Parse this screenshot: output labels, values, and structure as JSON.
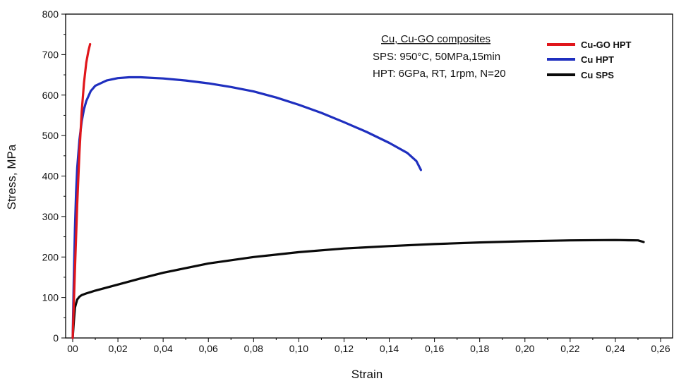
{
  "chart_data": {
    "type": "line",
    "xlabel": "Strain",
    "ylabel": "Stress, MPa",
    "xlim": [
      0,
      0.265
    ],
    "ylim": [
      0,
      800
    ],
    "x_ticks": [
      {
        "value": 0.0,
        "label": "00"
      },
      {
        "value": 0.02,
        "label": "0,02"
      },
      {
        "value": 0.04,
        "label": "0,04"
      },
      {
        "value": 0.06,
        "label": "0,06"
      },
      {
        "value": 0.08,
        "label": "0,08"
      },
      {
        "value": 0.1,
        "label": "0,10"
      },
      {
        "value": 0.12,
        "label": "0,12"
      },
      {
        "value": 0.14,
        "label": "0,14"
      },
      {
        "value": 0.16,
        "label": "0,16"
      },
      {
        "value": 0.18,
        "label": "0,18"
      },
      {
        "value": 0.2,
        "label": "0,20"
      },
      {
        "value": 0.22,
        "label": "0,22"
      },
      {
        "value": 0.24,
        "label": "0,24"
      },
      {
        "value": 0.26,
        "label": "0,26"
      }
    ],
    "y_ticks": [
      {
        "value": 0,
        "label": "0"
      },
      {
        "value": 100,
        "label": "100"
      },
      {
        "value": 200,
        "label": "200"
      },
      {
        "value": 300,
        "label": "300"
      },
      {
        "value": 400,
        "label": "400"
      },
      {
        "value": 500,
        "label": "500"
      },
      {
        "value": 600,
        "label": "600"
      },
      {
        "value": 700,
        "label": "700"
      },
      {
        "value": 800,
        "label": "800"
      }
    ],
    "grid": false,
    "annotation": {
      "title": "Cu, Cu-GO composites",
      "lines": [
        "SPS: 950°C, 50MPa,15min",
        "HPT: 6GPa, RT, 1rpm, N=20"
      ]
    },
    "legend_position": "top-right",
    "series": [
      {
        "name": "Cu-GO HPT",
        "color": "#e0161b",
        "x": [
          0.0,
          0.001,
          0.002,
          0.003,
          0.004,
          0.005,
          0.006,
          0.007,
          0.0077
        ],
        "y": [
          0,
          170,
          330,
          460,
          560,
          630,
          680,
          710,
          726
        ]
      },
      {
        "name": "Cu HPT",
        "color": "#1f2fbf",
        "x": [
          0.0,
          0.0005,
          0.001,
          0.0015,
          0.002,
          0.003,
          0.004,
          0.005,
          0.006,
          0.008,
          0.01,
          0.015,
          0.02,
          0.025,
          0.03,
          0.04,
          0.05,
          0.06,
          0.07,
          0.08,
          0.09,
          0.1,
          0.11,
          0.12,
          0.13,
          0.14,
          0.148,
          0.152,
          0.154
        ],
        "y": [
          0,
          150,
          270,
          360,
          420,
          490,
          535,
          565,
          585,
          610,
          623,
          636,
          642,
          644,
          644,
          641,
          636,
          629,
          620,
          609,
          594,
          576,
          556,
          533,
          509,
          482,
          457,
          437,
          415
        ]
      },
      {
        "name": "Cu SPS",
        "color": "#0a0a0a",
        "x": [
          0.0,
          0.0005,
          0.001,
          0.002,
          0.003,
          0.004,
          0.006,
          0.01,
          0.02,
          0.03,
          0.04,
          0.06,
          0.08,
          0.1,
          0.12,
          0.14,
          0.16,
          0.18,
          0.2,
          0.22,
          0.24,
          0.25,
          0.2525
        ],
        "y": [
          0,
          40,
          75,
          95,
          102,
          106,
          110,
          117,
          132,
          147,
          161,
          184,
          200,
          212,
          221,
          227,
          232,
          236,
          239,
          241,
          242,
          241,
          237
        ]
      }
    ]
  }
}
